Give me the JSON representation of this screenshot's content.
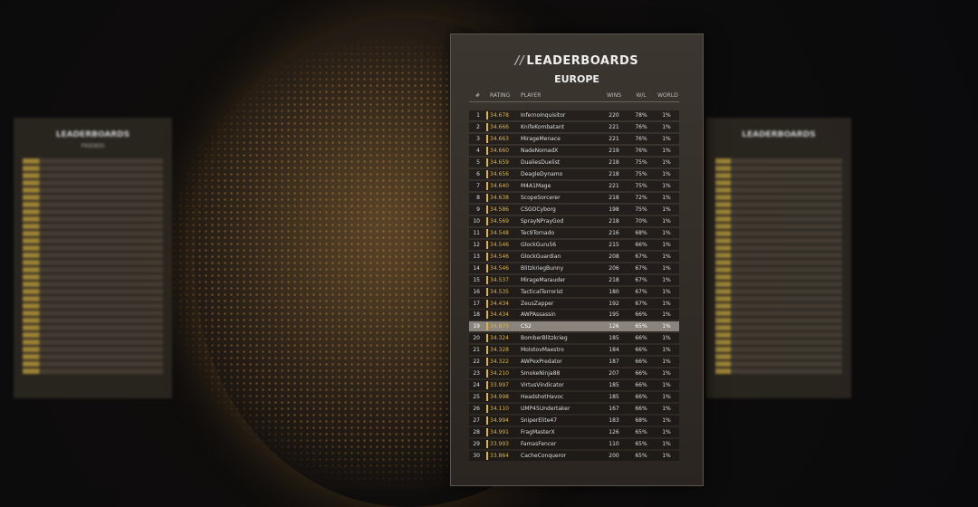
{
  "main_panel": {
    "title": "LEADERBOARDS",
    "region": "EUROPE",
    "columns": [
      "#",
      "RATING",
      "PLAYER",
      "WINS",
      "W/L",
      "WORLD"
    ],
    "highlighted_row": 18,
    "rows": [
      [
        "1",
        "34.678",
        "InfernoInquisitor",
        "220",
        "78%",
        "1%"
      ],
      [
        "2",
        "34.666",
        "KnifeKombatant",
        "221",
        "76%",
        "1%"
      ],
      [
        "3",
        "34.663",
        "MirageMenace",
        "221",
        "76%",
        "1%"
      ],
      [
        "4",
        "34.660",
        "NadeNomadX",
        "219",
        "76%",
        "1%"
      ],
      [
        "5",
        "34.659",
        "DualiesDuelist",
        "218",
        "75%",
        "1%"
      ],
      [
        "6",
        "34.656",
        "DeagleDynamo",
        "218",
        "75%",
        "1%"
      ],
      [
        "7",
        "34.640",
        "M4A1Mage",
        "221",
        "75%",
        "1%"
      ],
      [
        "8",
        "34.638",
        "ScopeSorcerer",
        "218",
        "72%",
        "1%"
      ],
      [
        "9",
        "34.586",
        "CSGOCyborg",
        "198",
        "75%",
        "1%"
      ],
      [
        "10",
        "34.569",
        "SprayNPrayGod",
        "218",
        "70%",
        "1%"
      ],
      [
        "11",
        "34.548",
        "Tec9Tornado",
        "216",
        "68%",
        "1%"
      ],
      [
        "12",
        "34.546",
        "GlockGuru56",
        "215",
        "66%",
        "1%"
      ],
      [
        "13",
        "34.546",
        "GlockGuardian",
        "208",
        "67%",
        "1%"
      ],
      [
        "14",
        "34.546",
        "BlitzkriegBunny",
        "206",
        "67%",
        "1%"
      ],
      [
        "15",
        "34.537",
        "MirageMarauder",
        "218",
        "67%",
        "1%"
      ],
      [
        "16",
        "34.535",
        "TacticalTerrorist",
        "180",
        "67%",
        "1%"
      ],
      [
        "17",
        "34.434",
        "ZeusZapper",
        "192",
        "67%",
        "1%"
      ],
      [
        "18",
        "34.434",
        "AWPAssassin",
        "195",
        "66%",
        "1%"
      ],
      [
        "19",
        "34.875",
        "CS2",
        "126",
        "65%",
        "1%"
      ],
      [
        "20",
        "34.324",
        "BomberBlitzkrieg",
        "185",
        "66%",
        "1%"
      ],
      [
        "21",
        "34.328",
        "MolotovMaestro",
        "184",
        "66%",
        "1%"
      ],
      [
        "22",
        "34.322",
        "AWPexPredator",
        "187",
        "66%",
        "1%"
      ],
      [
        "23",
        "34.210",
        "SmokeNinja88",
        "207",
        "66%",
        "1%"
      ],
      [
        "24",
        "33.997",
        "VirtusVindicator",
        "185",
        "66%",
        "1%"
      ],
      [
        "25",
        "34.998",
        "HeadshotHavoc",
        "185",
        "66%",
        "1%"
      ],
      [
        "26",
        "34.110",
        "UMP45Undertaker",
        "167",
        "66%",
        "1%"
      ],
      [
        "27",
        "34.994",
        "SniperElite47",
        "183",
        "68%",
        "1%"
      ],
      [
        "28",
        "34.991",
        "FragMasterX",
        "126",
        "65%",
        "1%"
      ],
      [
        "29",
        "33.993",
        "FamasFencer",
        "110",
        "65%",
        "1%"
      ],
      [
        "30",
        "33.864",
        "CacheConqueror",
        "200",
        "65%",
        "1%"
      ]
    ]
  },
  "left_panel": {
    "title": "LEADERBOARDS",
    "region": "FRIENDS"
  },
  "right_panel": {
    "title": "LEADERBOARDS"
  }
}
